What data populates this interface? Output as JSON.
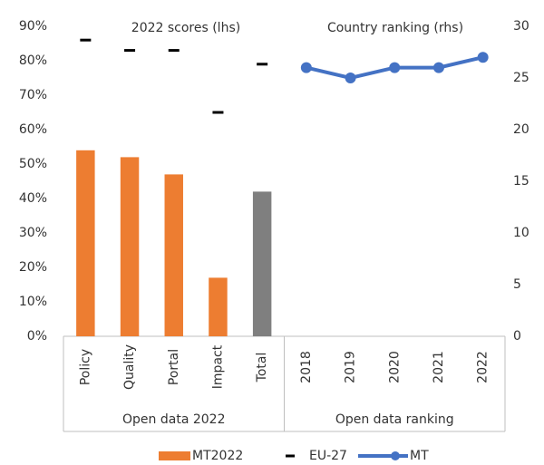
{
  "chart_data": {
    "type": "bar",
    "subtitles": [
      "2022 scores (lhs)",
      "Country ranking (rhs)"
    ],
    "categories": [
      "Policy",
      "Quality",
      "Portal",
      "Impact",
      "Total",
      "2018",
      "2019",
      "2020",
      "2021",
      "2022"
    ],
    "groups": [
      {
        "label": "Open data 2022",
        "count": 5
      },
      {
        "label": "Open data ranking",
        "count": 5
      }
    ],
    "series": [
      {
        "name": "MT2022",
        "type": "bar",
        "color": "#ed7d31",
        "colors": [
          "#ed7d31",
          "#ed7d31",
          "#ed7d31",
          "#ed7d31",
          "#7f7f7f",
          null,
          null,
          null,
          null,
          null
        ],
        "values": [
          54,
          52,
          47,
          17,
          42,
          null,
          null,
          null,
          null,
          null
        ]
      },
      {
        "name": "EU-27",
        "type": "dash",
        "color": "#000000",
        "values": [
          86,
          83,
          83,
          65,
          79,
          null,
          null,
          null,
          null,
          null
        ]
      },
      {
        "name": "MT",
        "type": "line",
        "axis": "y2",
        "color": "#4472c4",
        "values": [
          null,
          null,
          null,
          null,
          null,
          26,
          25,
          26,
          26,
          27
        ]
      }
    ],
    "ylim": [
      0,
      90
    ],
    "yticks": [
      {
        "value": 0,
        "label": "0%"
      },
      {
        "value": 10,
        "label": "10%"
      },
      {
        "value": 20,
        "label": "20%"
      },
      {
        "value": 30,
        "label": "30%"
      },
      {
        "value": 40,
        "label": "40%"
      },
      {
        "value": 50,
        "label": "50%"
      },
      {
        "value": 60,
        "label": "60%"
      },
      {
        "value": 70,
        "label": "70%"
      },
      {
        "value": 80,
        "label": "80%"
      },
      {
        "value": 90,
        "label": "90%"
      }
    ],
    "y2lim": [
      0,
      30
    ],
    "y2ticks": [
      0,
      5,
      10,
      15,
      20,
      25,
      30
    ],
    "grid": false,
    "legend": "bottom"
  }
}
